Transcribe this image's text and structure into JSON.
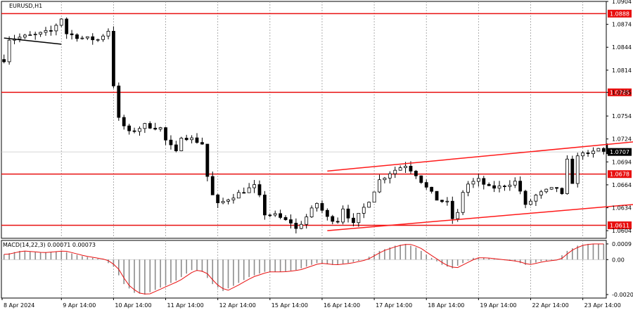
{
  "chart_data": [
    {
      "type": "candlestick",
      "title": "EURUSD,H1",
      "ylim": [
        1.0594,
        1.0904
      ],
      "yticks": [
        "1.0904",
        "1.0874",
        "1.0844",
        "1.0814",
        "1.0785",
        "1.0754",
        "1.0724",
        "1.0694",
        "1.0664",
        "1.0634",
        "1.0604"
      ],
      "xticks": [
        "8 Apr 2024",
        "9 Apr 14:00",
        "10 Apr 14:00",
        "11 Apr 14:00",
        "12 Apr 14:00",
        "15 Apr 14:00",
        "16 Apr 14:00",
        "17 Apr 14:00",
        "18 Apr 14:00",
        "19 Apr 14:00",
        "22 Apr 14:00",
        "23 Apr 14:00"
      ],
      "grid": true,
      "current_price": "1.0707",
      "levels": [
        {
          "label": "1.0888",
          "value": 1.0888,
          "color": "#e81010"
        },
        {
          "label": "1.0785",
          "value": 1.0785,
          "color": "#e81010"
        },
        {
          "label": "1.0678",
          "value": 1.0678,
          "color": "#e81010"
        },
        {
          "label": "1.0611",
          "value": 1.0611,
          "color": "#e81010"
        }
      ],
      "trend_lines": [
        {
          "name": "upper-channel",
          "from": {
            "bar": 62,
            "price": 1.0682
          },
          "to": {
            "bar": 122,
            "price": 1.0721
          }
        },
        {
          "name": "lower-channel",
          "from": {
            "bar": 62,
            "price": 1.0604
          },
          "to": {
            "bar": 122,
            "price": 1.0639
          }
        },
        {
          "name": "early-trend",
          "from": {
            "bar": 0,
            "price": 1.0856
          },
          "to": {
            "bar": 11,
            "price": 1.0848
          }
        }
      ],
      "bar_anchors": [
        [
          0,
          1.0828
        ],
        [
          1,
          1.0855
        ],
        [
          3,
          1.0857
        ],
        [
          6,
          1.086
        ],
        [
          9,
          1.0865
        ],
        [
          11,
          1.0882
        ],
        [
          12,
          1.0862
        ],
        [
          15,
          1.0856
        ],
        [
          18,
          1.0854
        ],
        [
          20,
          1.0866
        ],
        [
          21,
          1.0795
        ],
        [
          22,
          1.075
        ],
        [
          24,
          1.0732
        ],
        [
          27,
          1.0742
        ],
        [
          30,
          1.0738
        ],
        [
          31,
          1.0722
        ],
        [
          33,
          1.0706
        ],
        [
          34,
          1.0728
        ],
        [
          36,
          1.0724
        ],
        [
          38,
          1.0718
        ],
        [
          39,
          1.0675
        ],
        [
          40,
          1.065
        ],
        [
          41,
          1.0638
        ],
        [
          43,
          1.0646
        ],
        [
          46,
          1.0656
        ],
        [
          48,
          1.0662
        ],
        [
          49,
          1.0648
        ],
        [
          50,
          1.0626
        ],
        [
          52,
          1.0624
        ],
        [
          54,
          1.0617
        ],
        [
          55,
          1.0615
        ],
        [
          56,
          1.0606
        ],
        [
          58,
          1.0622
        ],
        [
          60,
          1.064
        ],
        [
          62,
          1.0621
        ],
        [
          64,
          1.0617
        ],
        [
          65,
          1.0634
        ],
        [
          67,
          1.0612
        ],
        [
          68,
          1.0624
        ],
        [
          70,
          1.0644
        ],
        [
          72,
          1.067
        ],
        [
          74,
          1.068
        ],
        [
          76,
          1.0687
        ],
        [
          77,
          1.069
        ],
        [
          79,
          1.0678
        ],
        [
          81,
          1.066
        ],
        [
          83,
          1.0645
        ],
        [
          85,
          1.064
        ],
        [
          86,
          1.062
        ],
        [
          87,
          1.0626
        ],
        [
          88,
          1.0655
        ],
        [
          89,
          1.0665
        ],
        [
          91,
          1.067
        ],
        [
          93,
          1.066
        ],
        [
          95,
          1.0661
        ],
        [
          97,
          1.0666
        ],
        [
          98,
          1.0668
        ],
        [
          99,
          1.0656
        ],
        [
          100,
          1.0636
        ],
        [
          102,
          1.065
        ],
        [
          104,
          1.0656
        ],
        [
          106,
          1.066
        ],
        [
          107,
          1.065
        ],
        [
          108,
          1.0695
        ],
        [
          109,
          1.0668
        ],
        [
          110,
          1.07
        ],
        [
          111,
          1.0708
        ],
        [
          112,
          1.0702
        ],
        [
          114,
          1.0711
        ],
        [
          115,
          1.0707
        ]
      ]
    },
    {
      "type": "histogram",
      "title": "MACD(14,22,3) 0.00071 0.00073",
      "ylim": [
        -0.0022,
        0.0011
      ],
      "yticks": [
        "0.0009",
        "0.00",
        "-0.0020"
      ],
      "bar_anchors": [
        [
          0,
          0.0003
        ],
        [
          3,
          0.0005
        ],
        [
          7,
          0.0004
        ],
        [
          11,
          0.0005
        ],
        [
          15,
          0.0002
        ],
        [
          19,
          0.0
        ],
        [
          21,
          -0.0004
        ],
        [
          23,
          -0.0014
        ],
        [
          25,
          -0.0019
        ],
        [
          27,
          -0.002
        ],
        [
          30,
          -0.0016
        ],
        [
          33,
          -0.0012
        ],
        [
          36,
          -0.0006
        ],
        [
          38,
          -0.0007
        ],
        [
          40,
          -0.0014
        ],
        [
          42,
          -0.0018
        ],
        [
          44,
          -0.0015
        ],
        [
          47,
          -0.001
        ],
        [
          50,
          -0.0007
        ],
        [
          53,
          -0.0007
        ],
        [
          56,
          -0.0006
        ],
        [
          60,
          -0.0002
        ],
        [
          63,
          -0.0003
        ],
        [
          66,
          -0.0002
        ],
        [
          69,
          0.0
        ],
        [
          72,
          0.0005
        ],
        [
          75,
          0.0008
        ],
        [
          77,
          0.0009
        ],
        [
          79,
          0.0007
        ],
        [
          81,
          0.0003
        ],
        [
          84,
          -0.0003
        ],
        [
          86,
          -0.0005
        ],
        [
          88,
          -0.0002
        ],
        [
          90,
          0.0001
        ],
        [
          92,
          0.0001
        ],
        [
          95,
          0.0
        ],
        [
          98,
          -0.0001
        ],
        [
          100,
          -0.0003
        ],
        [
          103,
          -0.0001
        ],
        [
          106,
          0.0
        ],
        [
          108,
          0.0005
        ],
        [
          110,
          0.0008
        ],
        [
          112,
          0.0009
        ],
        [
          115,
          0.0009
        ]
      ]
    }
  ],
  "colors": {
    "level": "#e81010",
    "trend": "#ff1a1a",
    "candle": "#000000",
    "grid": "#9a9a9a",
    "macd_signal": "#e81010"
  }
}
